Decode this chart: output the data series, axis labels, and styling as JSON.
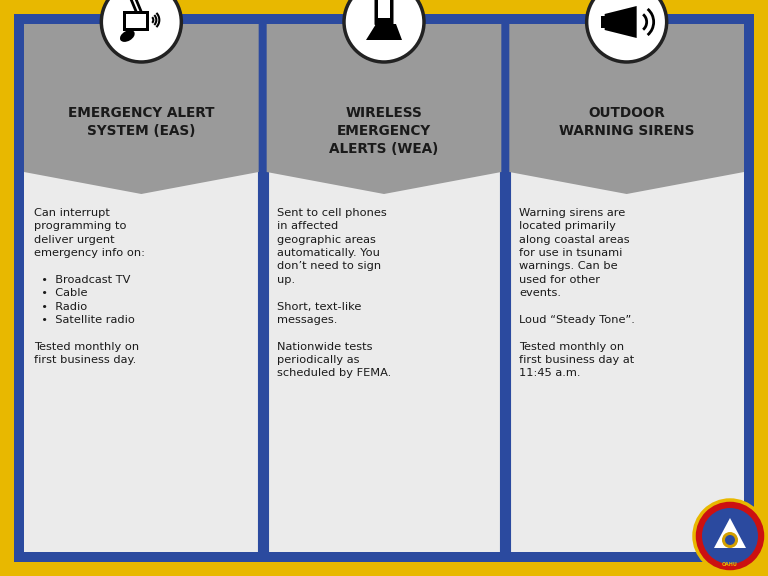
{
  "bg_outer": "#E8B800",
  "bg_inner": "#2B4A9F",
  "col_bg": "#EBEBEB",
  "header_bg": "#9A9A9A",
  "text_color": "#1a1a1a",
  "title_color": "#1a1a1a",
  "columns": [
    {
      "title": "EMERGENCY ALERT\nSYSTEM (EAS)",
      "body": "Can interrupt\nprogramming to\ndeliver urgent\nemergency info on:\n\n  •  Broadcast TV\n  •  Cable\n  •  Radio\n  •  Satellite radio\n\nTested monthly on\nfirst business day."
    },
    {
      "title": "WIRELESS\nEMERGENCY\nALERTS (WEA)",
      "body": "Sent to cell phones\nin affected\ngeographic areas\nautomatically. You\ndon’t need to sign\nup.\n\nShort, text-like\nmessages.\n\nNationwide tests\nperiodically as\nscheduled by FEMA."
    },
    {
      "title": "OUTDOOR\nWARNING SIRENS",
      "body": "Warning sirens are\nlocated primarily\nalong coastal areas\nfor use in tsunami\nwarnings. Can be\nused for other\nevents.\n\nLoud “Steady Tone”.\n\nTested monthly on\nfirst business day at\n11:45 a.m."
    }
  ],
  "icon_circle_color": "#ffffff",
  "icon_circle_edge": "#222222",
  "figsize": [
    7.68,
    5.76
  ],
  "dpi": 100
}
